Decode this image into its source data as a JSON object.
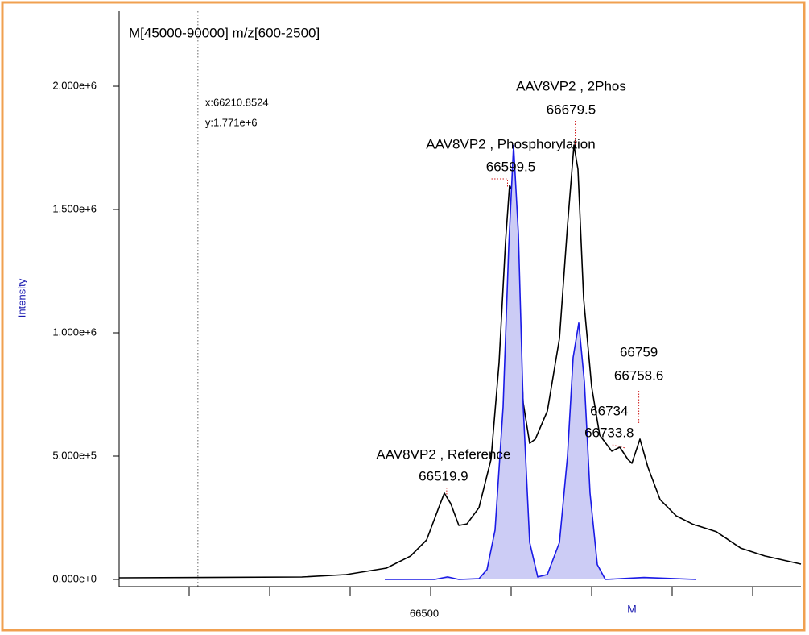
{
  "chart_data": {
    "type": "line",
    "title": "M[45000-90000] m/z[600-2500]",
    "x_label": "M",
    "y_label": "Intensity",
    "xlim": [
      66113,
      66960
    ],
    "ylim": [
      0,
      2304000
    ],
    "xticks": [
      {
        "value": 66200,
        "label": null
      },
      {
        "value": 66300,
        "label": null
      },
      {
        "value": 66400,
        "label": null
      },
      66500,
      {
        "value": 66600,
        "label": null
      },
      {
        "value": 66700,
        "label": null
      },
      {
        "value": 66800,
        "label": null
      },
      {
        "value": 66900,
        "label": null
      }
    ],
    "yticks": [
      {
        "value": 0,
        "label": "0.000e+0"
      },
      {
        "value": 500000,
        "label": "5.000e+5"
      },
      {
        "value": 1000000,
        "label": "1.000e+6"
      },
      {
        "value": 1500000,
        "label": "1.500e+6"
      },
      {
        "value": 2000000,
        "label": "2.000e+6"
      }
    ],
    "series": [
      {
        "color": "#000000",
        "x": [
          66113,
          66340,
          66395,
          66445,
          66475,
          66495,
          66510,
          66517,
          66525,
          66535,
          66545,
          66560,
          66575,
          66585,
          66593,
          66598,
          66603,
          66610,
          66615,
          66623,
          66630,
          66645,
          66660,
          66670,
          66678,
          66683,
          66690,
          66700,
          66710,
          66725,
          66735,
          66745,
          66750,
          66760,
          66770,
          66785,
          66805,
          66825,
          66855,
          66885,
          66915,
          66960
        ],
        "values": [
          6500,
          9800,
          19600,
          45700,
          94800,
          160000,
          291000,
          350000,
          307000,
          219000,
          225000,
          291000,
          487000,
          879000,
          1369000,
          1598000,
          1565000,
          1042000,
          716000,
          552000,
          569000,
          683000,
          977000,
          1435000,
          1761000,
          1663000,
          1141000,
          781000,
          585000,
          520000,
          536000,
          487000,
          471000,
          569000,
          454000,
          324000,
          258000,
          225000,
          193000,
          127000,
          95000,
          62000
        ]
      },
      {
        "color": "#1a1ae6",
        "fill": "#ccccf5",
        "x": [
          66443,
          66505,
          66521,
          66535,
          66560,
          66570,
          66580,
          66590,
          66597,
          66603,
          66609,
          66615,
          66623,
          66633,
          66645,
          66660,
          66670,
          66677,
          66684,
          66691,
          66698,
          66707,
          66717,
          66765,
          66830
        ],
        "values": [
          0,
          0,
          10000,
          0,
          3000,
          40000,
          200000,
          700000,
          1350000,
          1760000,
          1400000,
          700000,
          150000,
          10000,
          20000,
          150000,
          500000,
          900000,
          1040000,
          800000,
          350000,
          60000,
          0,
          8000,
          0
        ]
      }
    ],
    "annotations": [
      {
        "label": "AAV8VP2 , Reference",
        "mass": 66519.9
      },
      {
        "label": "AAV8VP2 , Phosphorylation",
        "mass": 66599.5
      },
      {
        "label": "AAV8VP2 , 2Phos",
        "mass": 66679.5
      },
      {
        "label": "66734",
        "mass": 66733.8
      },
      {
        "label": "66759",
        "mass": 66758.6
      }
    ],
    "cursor": {
      "x": 66210.8524,
      "x_label": "x:66210.8524",
      "y_label": "y:1.771e+6"
    }
  }
}
